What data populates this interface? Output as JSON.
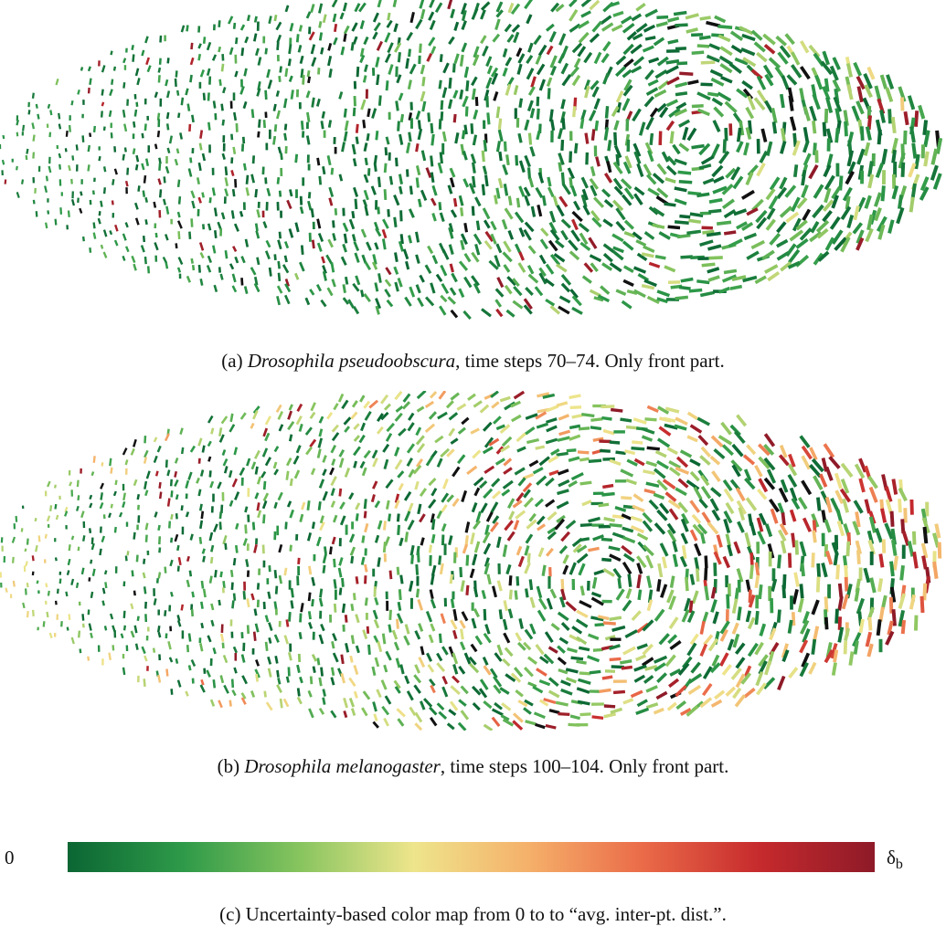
{
  "panels": [
    {
      "id": "a",
      "caption_prefix": "(a) ",
      "species": "Drosophila pseudoobscura",
      "caption_suffix": ", time steps 70–74. Only front part."
    },
    {
      "id": "b",
      "caption_prefix": "(b) ",
      "species": "Drosophila melanogaster",
      "caption_suffix": ", time steps 100–104. Only front part."
    }
  ],
  "colormap": {
    "min_label": "0",
    "max_symbol": "δ",
    "max_subscript": "b",
    "stops": [
      "#0b6633",
      "#2e9a49",
      "#86c45e",
      "#eee58c",
      "#f5b06a",
      "#ea6a48",
      "#c62a2d",
      "#8e1a28"
    ],
    "caption": "(c) Uncertainty-based color map from 0 to to “avg. inter-pt. dist.”."
  }
}
